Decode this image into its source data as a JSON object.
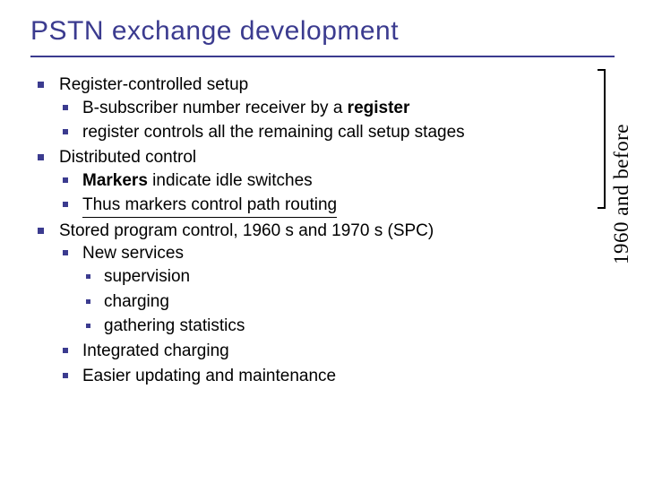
{
  "title": "PSTN exchange development",
  "side_label": "1960 and before",
  "items": {
    "a": {
      "label": "Register-controlled setup"
    },
    "a1": {
      "pre": "B-subscriber number receiver by a ",
      "bold": "register"
    },
    "a2": {
      "label": "register controls all the remaining call setup stages"
    },
    "b": {
      "label": "Distributed control"
    },
    "b1": {
      "bold": "Markers",
      "post": " indicate idle switches"
    },
    "b2": {
      "label": "Thus markers control path routing"
    },
    "c": {
      "label": "Stored program control, 1960 s and 1970 s (SPC)"
    },
    "c1": {
      "label": "New services"
    },
    "c1a": {
      "label": "supervision"
    },
    "c1b": {
      "label": "charging"
    },
    "c1c": {
      "label": "gathering statistics"
    },
    "c2": {
      "label": "Integrated charging"
    },
    "c3": {
      "label": "Easier updating and maintenance"
    }
  },
  "colors": {
    "accent": "#3b3b8f",
    "text": "#000000",
    "background": "#ffffff"
  }
}
